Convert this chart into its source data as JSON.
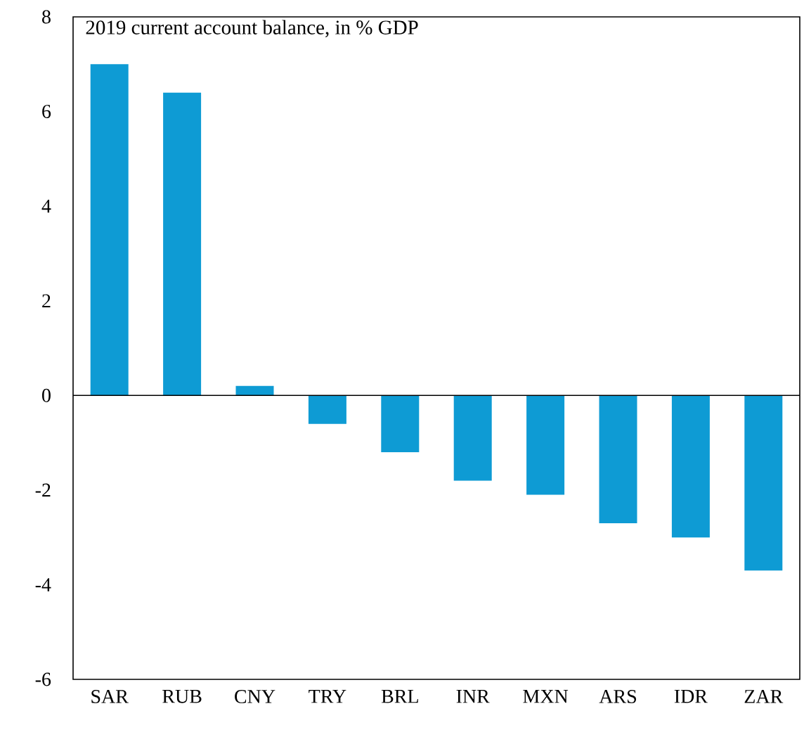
{
  "chart_data": {
    "type": "bar",
    "title": "2019 current account balance, in % GDP",
    "categories": [
      "SAR",
      "RUB",
      "CNY",
      "TRY",
      "BRL",
      "INR",
      "MXN",
      "ARS",
      "IDR",
      "ZAR"
    ],
    "values": [
      7.0,
      6.4,
      0.2,
      -0.6,
      -1.2,
      -1.8,
      -2.1,
      -2.7,
      -3.0,
      -3.7
    ],
    "color": "#0e9bd4",
    "ylim": [
      -6,
      8
    ],
    "yticks": [
      -6,
      -4,
      -2,
      0,
      2,
      4,
      6,
      8
    ]
  }
}
